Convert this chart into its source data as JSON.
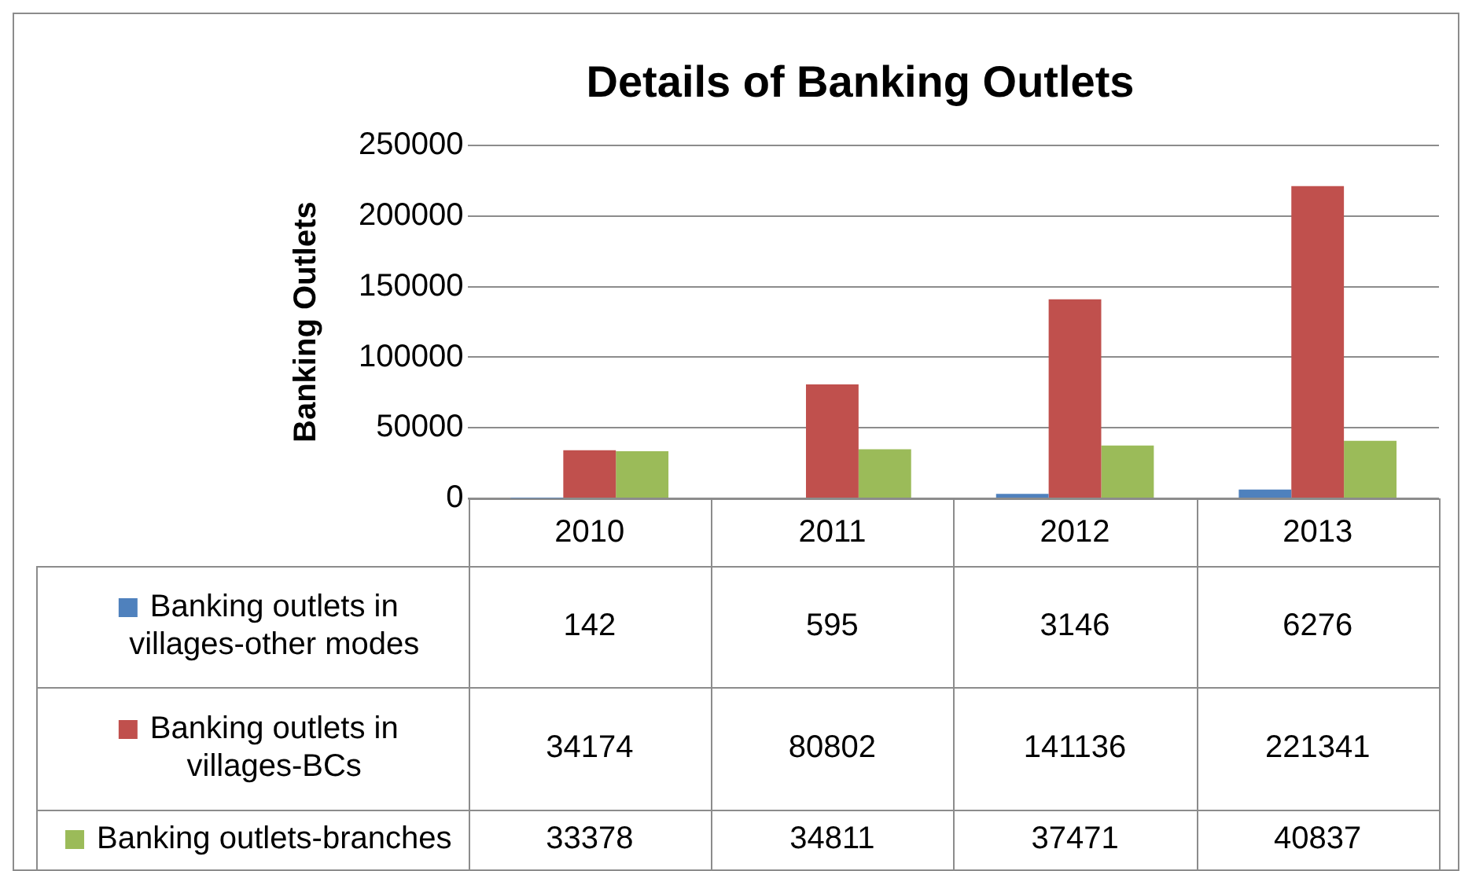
{
  "chart_data": {
    "type": "bar",
    "title": "Details of Banking Outlets",
    "ylabel": "Banking Outlets",
    "categories": [
      "2010",
      "2011",
      "2012",
      "2013"
    ],
    "series": [
      {
        "name": "Banking outlets in villages-other modes",
        "color": "#4f81bd",
        "values": [
          142,
          595,
          3146,
          6276
        ]
      },
      {
        "name": "Banking outlets in villages-BCs",
        "color": "#c0504d",
        "values": [
          34174,
          80802,
          141136,
          221341
        ]
      },
      {
        "name": "Banking outlets-branches",
        "color": "#9bbb59",
        "values": [
          33378,
          34811,
          37471,
          40837
        ]
      }
    ],
    "ylim": [
      0,
      250000
    ],
    "yticks": [
      0,
      50000,
      100000,
      150000,
      200000,
      250000
    ],
    "grid": "y",
    "legend": "bottom left",
    "data_labels": true
  }
}
